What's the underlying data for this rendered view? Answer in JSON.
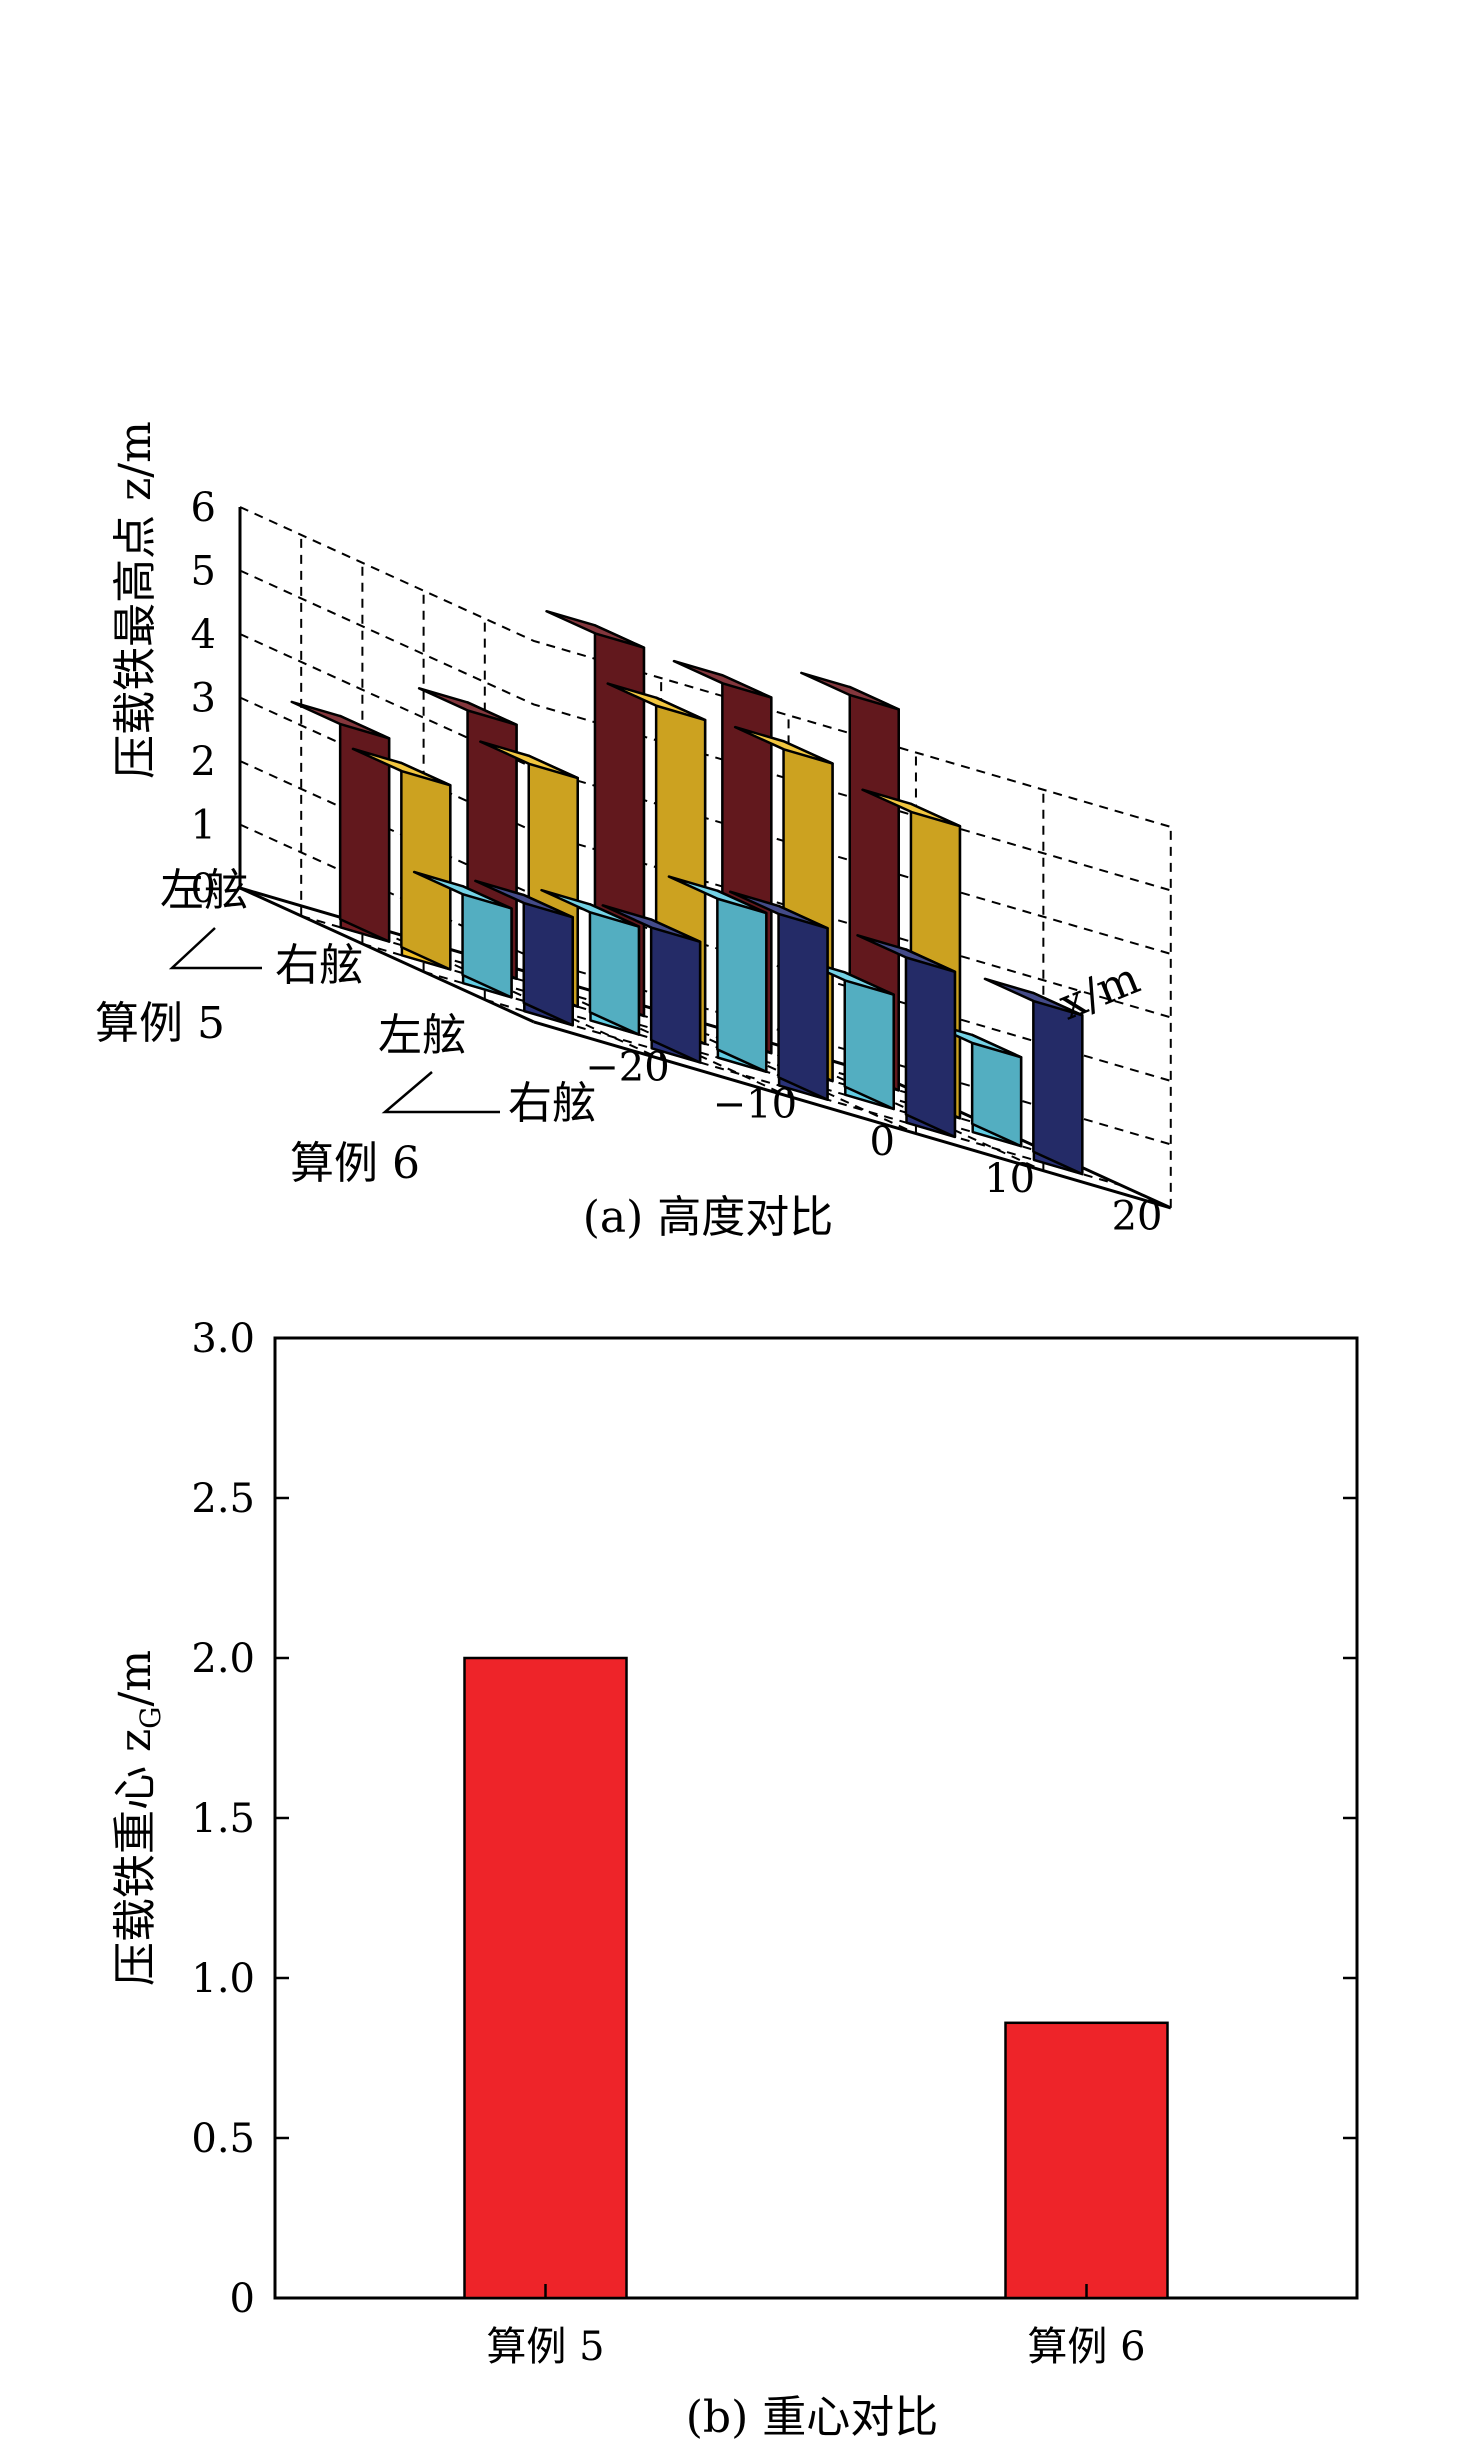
{
  "chart_data": [
    {
      "type": "bar3d",
      "caption": "(a) 高度对比",
      "zlabel": "压载铁最高点 z/m",
      "xlabel": "x/m",
      "zlim": [
        0,
        6
      ],
      "z_ticks": [
        "0",
        "1",
        "2",
        "3",
        "4",
        "5",
        "6"
      ],
      "x_ticks": [
        "−20",
        "−10",
        "0",
        "10",
        "20"
      ],
      "x_tick_values": [
        -20,
        -10,
        0,
        10,
        20
      ],
      "rows": [
        {
          "label": "左舷",
          "case": "算例 5",
          "color": "#731c22",
          "x": [
            -20,
            -10,
            0,
            10,
            20
          ],
          "values": [
            3.2,
            4.0,
            5.8,
            5.6,
            6.0
          ]
        },
        {
          "label": "右舷",
          "case": "算例 5",
          "color": "#f0bf26",
          "x": [
            -20,
            -10,
            0,
            10,
            20
          ],
          "values": [
            2.9,
            3.6,
            5.1,
            5.0,
            4.6
          ]
        },
        {
          "label": "左舷",
          "case": "算例 6",
          "color": "#62cde3",
          "x": [
            -20,
            -10,
            0,
            10,
            20
          ],
          "values": [
            1.4,
            1.7,
            2.5,
            1.8,
            1.4
          ]
        },
        {
          "label": "右舷",
          "case": "算例 6",
          "color": "#2a3379",
          "x": [
            -20,
            -10,
            0,
            10,
            20
          ],
          "values": [
            1.7,
            1.9,
            2.7,
            2.6,
            2.5
          ]
        }
      ],
      "case_labels": [
        "算例 5",
        "算例 6"
      ]
    },
    {
      "type": "bar",
      "caption": "(b) 重心对比",
      "ylabel_main": "压载铁重心 z",
      "ylabel_sub": "G",
      "ylabel_unit": "/m",
      "categories": [
        "算例 5",
        "算例 6"
      ],
      "values": [
        2.0,
        0.86
      ],
      "ylim": [
        0,
        3.0
      ],
      "y_ticks": [
        "0",
        "0.5",
        "1.0",
        "1.5",
        "2.0",
        "2.5",
        "3.0"
      ],
      "y_tick_values": [
        0,
        0.5,
        1.0,
        1.5,
        2.0,
        2.5,
        3.0
      ],
      "color": "#ee2429"
    }
  ]
}
